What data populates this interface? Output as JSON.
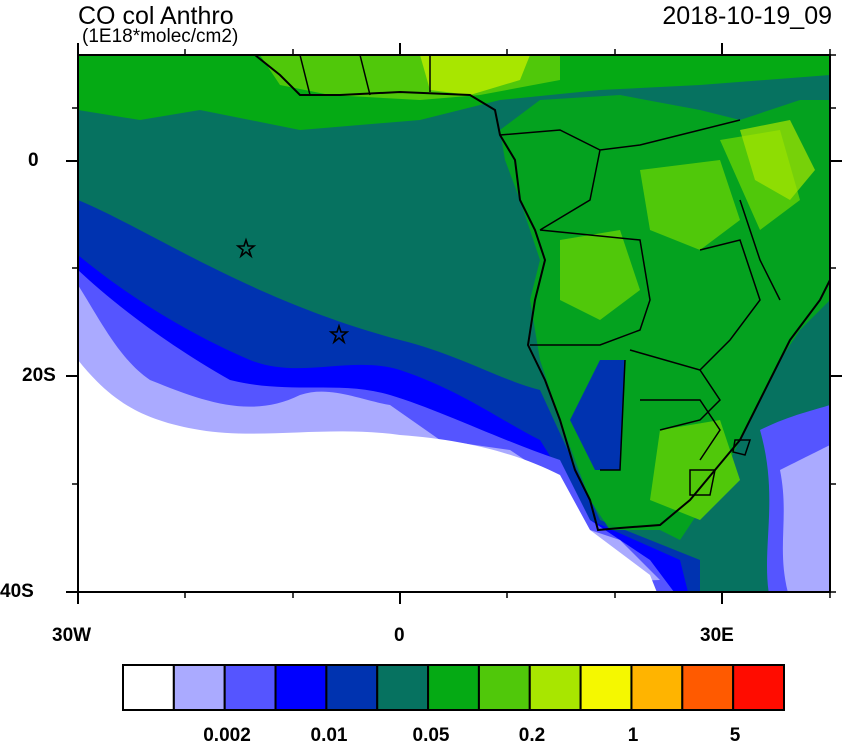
{
  "title": "CO col Anthro",
  "units": "(1E18*molec/cm2)",
  "datetime": "2018-10-19_09",
  "axes": {
    "lat_labels": [
      "0",
      "20S",
      "40S"
    ],
    "lon_labels": [
      "30W",
      "0",
      "30E"
    ],
    "lon_range": [
      -30,
      40
    ],
    "lat_range": [
      -40,
      10
    ]
  },
  "markers": [
    {
      "type": "star",
      "lon": -14.4,
      "lat": -7.9
    },
    {
      "type": "star",
      "lon": -5.7,
      "lat": -15.9
    }
  ],
  "colorbar": {
    "colors": [
      "#ffffff",
      "#aaaaff",
      "#5555ff",
      "#0000ff",
      "#0033b0",
      "#067260",
      "#05aa14",
      "#50c80a",
      "#a8e600",
      "#f5f800",
      "#ffb400",
      "#ff5a00",
      "#ff0c00"
    ],
    "labels": [
      "0.002",
      "0.01",
      "0.05",
      "0.2",
      "1",
      "5"
    ]
  }
}
